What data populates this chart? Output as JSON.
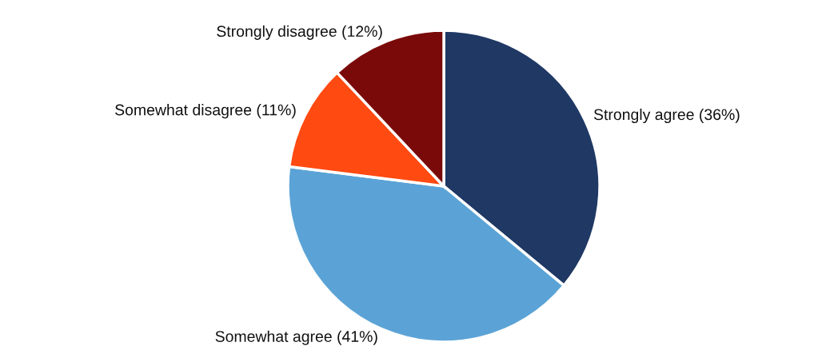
{
  "chart_data": {
    "type": "pie",
    "categories": [
      "Strongly agree",
      "Somewhat agree",
      "Somewhat disagree",
      "Strongly disagree"
    ],
    "values": [
      36,
      41,
      11,
      12
    ],
    "value_labels": [
      "(36%)",
      "(41%)",
      "(11%)",
      "(12%)"
    ],
    "colors": [
      "#1f3864",
      "#5ba3d6",
      "#ff4a12",
      "#7a0a0a"
    ],
    "legend": false
  }
}
